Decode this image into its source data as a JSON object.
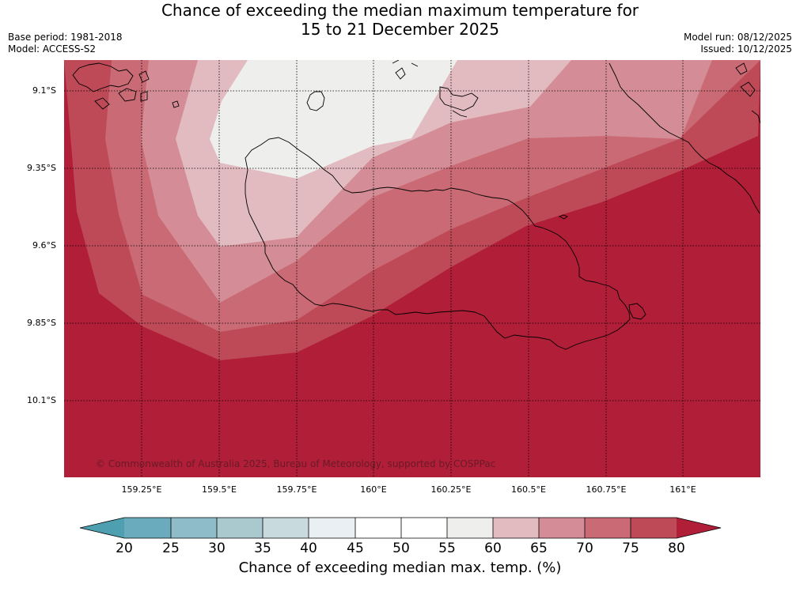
{
  "title": {
    "line1": "Chance of exceeding the median maximum temperature for",
    "line2": "15 to 21 December 2025"
  },
  "meta": {
    "base_period": "Base period: 1981-2018",
    "model": "Model: ACCESS-S2",
    "model_run": "Model run: 08/12/2025",
    "issued": "Issued: 10/12/2025"
  },
  "map": {
    "lat_labels": [
      "9.1°S",
      "9.35°S",
      "9.6°S",
      "9.85°S",
      "10.1°S"
    ],
    "lon_labels": [
      "159.25°E",
      "159.5°E",
      "159.75°E",
      "160°E",
      "160.25°E",
      "160.5°E",
      "160.75°E",
      "161°E"
    ],
    "copyright": "© Commonwealth of Australia 2025, Bureau of Meteorology, supported by COSPPac"
  },
  "colorbar": {
    "ticks": [
      "20",
      "25",
      "30",
      "35",
      "40",
      "45",
      "50",
      "55",
      "60",
      "65",
      "70",
      "75",
      "80"
    ],
    "label": "Chance of exceeding median max. temp. (%)",
    "colors": {
      "below20": "#4ea0b0",
      "20-25": "#6aacbd",
      "25-30": "#8ebcc8",
      "30-35": "#aac9cf",
      "35-40": "#c9dadf",
      "40-45": "#e9eff2",
      "45-50": "#ffffff",
      "50-55": "#ffffff",
      "55-60": "#eeeeed",
      "60-65": "#e2bbc1",
      "65-70": "#d48d96",
      "70-75": "#c96a75",
      "75-80": "#be4a57",
      "above80": "#b01e38"
    }
  }
}
